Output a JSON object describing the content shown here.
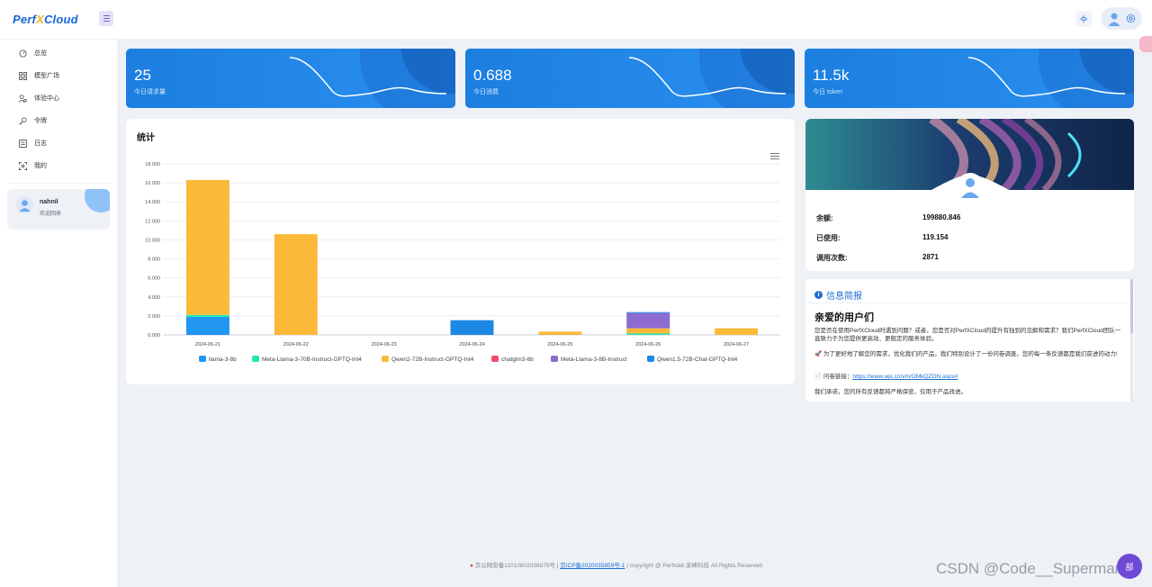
{
  "brand": {
    "logo_a": "Perf",
    "logo_x": "X",
    "logo_b": "Cloud"
  },
  "sidebar": {
    "items": [
      {
        "label": "总览",
        "icon": "dashboard-icon"
      },
      {
        "label": "模型广场",
        "icon": "grid-icon"
      },
      {
        "label": "体验中心",
        "icon": "experience-icon"
      },
      {
        "label": "令牌",
        "icon": "key-icon"
      },
      {
        "label": "日志",
        "icon": "log-icon"
      },
      {
        "label": "我的",
        "icon": "scan-icon"
      }
    ],
    "user": {
      "name": "nahnil",
      "welcome": "欢迎回来"
    }
  },
  "stats": [
    {
      "value": "25",
      "label": "今日请求量"
    },
    {
      "value": "0.688",
      "label": "今日消费"
    },
    {
      "value": "11.5k",
      "label": "今日 token"
    }
  ],
  "chart_section": {
    "title": "统计"
  },
  "chart_data": {
    "type": "bar",
    "stacked": true,
    "categories": [
      "2024-06-21",
      "2024-06-22",
      "2024-06-23",
      "2024-06-24",
      "2024-06-25",
      "2024-06-26",
      "2024-06-27"
    ],
    "y_ticks": [
      "0.000",
      "2.000",
      "4.000",
      "6.000",
      "8.000",
      "10.000",
      "12.000",
      "14.000",
      "16.000",
      "18.000"
    ],
    "ylim": [
      0,
      18
    ],
    "grid": true,
    "legend_position": "bottom",
    "series": [
      {
        "name": "llama-3-8b",
        "color": "#2196f3",
        "values": [
          1.9,
          0,
          0,
          0,
          0,
          0,
          0
        ]
      },
      {
        "name": "Meta-Llama-3-70B-Instruct-GPTQ-Int4",
        "color": "#1de9b6",
        "values": [
          0.2,
          0,
          0,
          0,
          0,
          0.15,
          0
        ]
      },
      {
        "name": "Qwen2-72B-Instruct-GPTQ-Int4",
        "color": "#fbb93a",
        "values": [
          14.2,
          10.6,
          0,
          0,
          0.35,
          0.55,
          0.7
        ]
      },
      {
        "name": "chatglm3-6b",
        "color": "#f24d6a",
        "values": [
          0,
          0,
          0,
          0,
          0,
          0,
          0
        ]
      },
      {
        "name": "Meta-Llama-3-8B-Instruct",
        "color": "#8e6bd1",
        "values": [
          0,
          0,
          0,
          0,
          0,
          1.6,
          0
        ]
      },
      {
        "name": "Qwen1.5-72B-Chat-GPTQ-Int4",
        "color": "#1e88e5",
        "values": [
          0,
          0,
          0,
          1.55,
          0,
          0.1,
          0
        ]
      }
    ]
  },
  "profile": {
    "rows": [
      {
        "label": "余额:",
        "value": "199880.846"
      },
      {
        "label": "已使用:",
        "value": "119.154"
      },
      {
        "label": "调用次数:",
        "value": "2871"
      }
    ]
  },
  "info": {
    "header": "信息简报",
    "heading": "亲爱的用户们",
    "p1": "您是否在使用PerfXCloud时遇到问题？或者，您是否对PerfXCloud的提升有独到的见解和需求？我们PerfXCloud团队一直致力于为您提供更高效、更稳定的服务体验。",
    "p2": "🚀 为了更好地了解您的需求，优化我们的产品，我们特别设计了一份问卷调查。您的每一条反馈都是我们前进的动力!",
    "link_prefix": "📄 问卷链接：",
    "link": "https://www.wjx.cn/vm/OMkQZON.aspx#",
    "p3": "我们承诺，您的所有反馈都将严格保密，仅用于产品改进。"
  },
  "footer": {
    "police": "京公网安备11010802038875号",
    "icp": "京ICP备2020035859号-1",
    "copy": "| copyright @ Perfxlab 澎峰科技 All Rights Reserved"
  },
  "float_button": "部",
  "watermark": "CSDN @Code__Superman"
}
